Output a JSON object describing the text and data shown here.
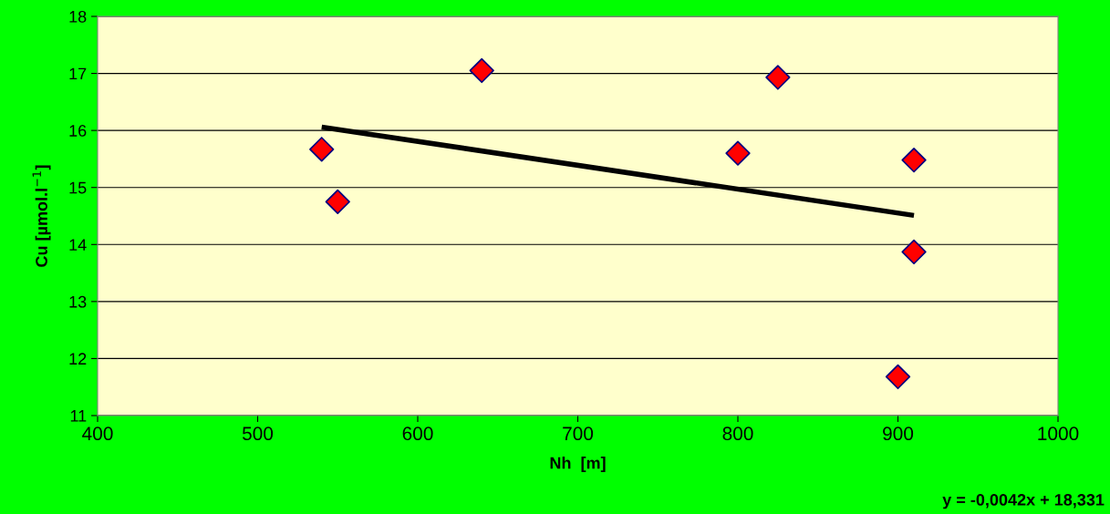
{
  "chart_data": {
    "type": "scatter",
    "xlabel": "Nh  [m]",
    "ylabel": "Cu [µmol.l$^{−1}$]",
    "xlim": [
      400,
      1000
    ],
    "xticks": [
      400,
      500,
      600,
      700,
      800,
      900,
      1000
    ],
    "ylim": [
      11,
      18
    ],
    "yticks": [
      11,
      12,
      13,
      14,
      15,
      16,
      17,
      18
    ],
    "grid": "y",
    "series": [
      {
        "marker": "diamond",
        "color": "#ff0000",
        "x": [
          540,
          550,
          640,
          800,
          825,
          900,
          910,
          910
        ],
        "values": [
          15.67,
          14.75,
          17.05,
          15.6,
          16.93,
          11.68,
          15.48,
          13.87
        ]
      },
      {
        "type": "line",
        "marker": "none",
        "color": "#000000",
        "x": [
          540,
          910
        ],
        "values": [
          16.06,
          14.51
        ]
      }
    ],
    "annotations": [
      "y = -0,0042x + 18,331"
    ]
  }
}
